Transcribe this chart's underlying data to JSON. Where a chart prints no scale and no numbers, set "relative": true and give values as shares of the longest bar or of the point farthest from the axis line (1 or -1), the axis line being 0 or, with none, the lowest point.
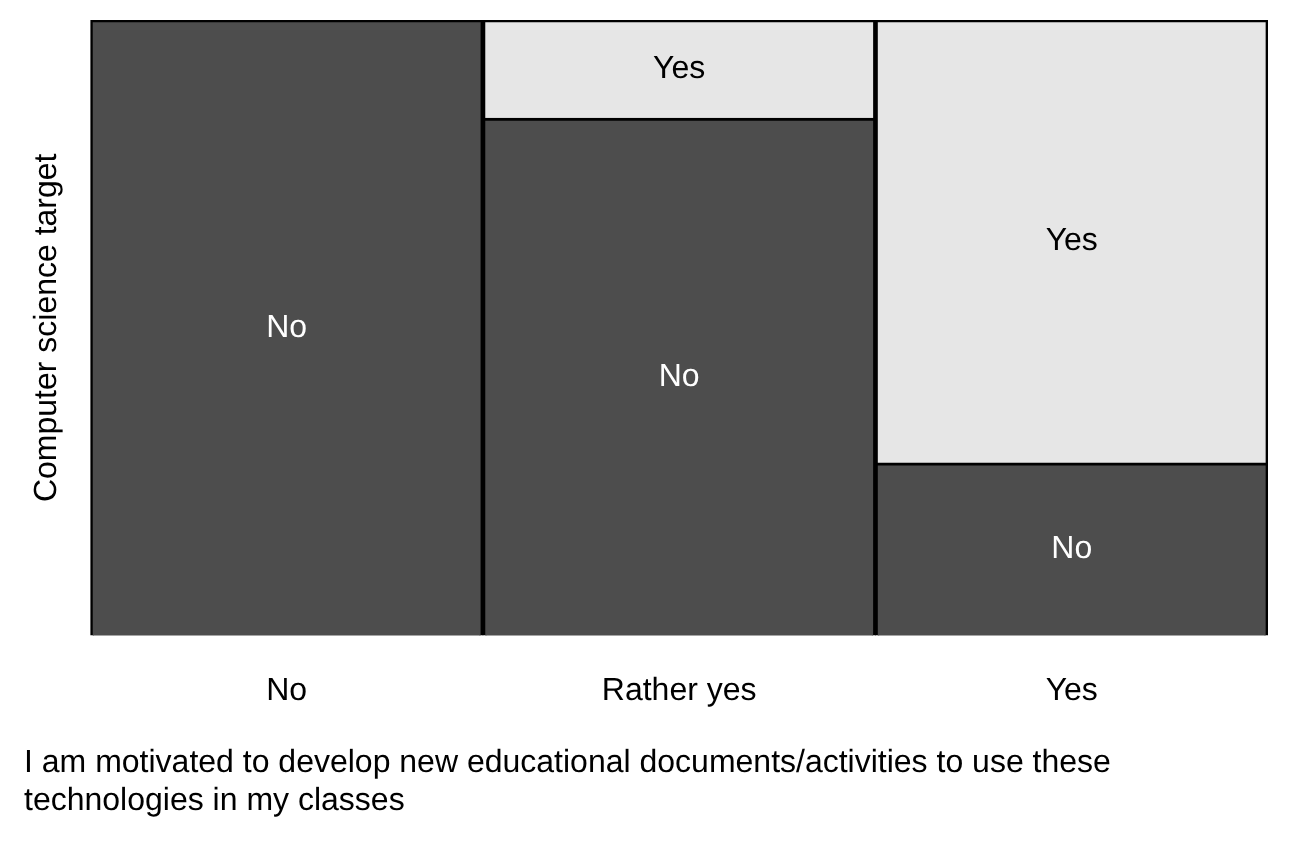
{
  "chart_data": {
    "type": "bar",
    "stacked": true,
    "relative": true,
    "ylabel": "Computer science target",
    "xlabel": "I am motivated to develop new educational documents/activities to use these technologies in my classes",
    "categories": [
      "No",
      "Rather yes",
      "Yes"
    ],
    "series": [
      {
        "name": "No",
        "color": "#4d4d4d",
        "values": [
          1,
          0.84,
          0.28
        ]
      },
      {
        "name": "Yes",
        "color": "#e6e6e6",
        "values": [
          0,
          0.16,
          0.72
        ]
      }
    ],
    "legend": false,
    "grid": false
  }
}
